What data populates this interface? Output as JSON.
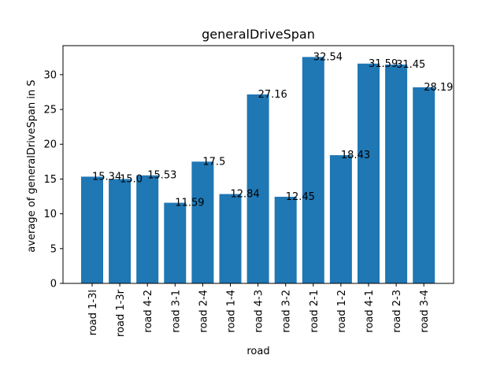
{
  "chart_data": {
    "type": "bar",
    "title": "generalDriveSpan",
    "xlabel": "road",
    "ylabel": "average of generalDriveSpan in S",
    "categories": [
      "road 1-3l",
      "road 1-3r",
      "road 4-2",
      "road 3-1",
      "road 2-4",
      "road 1-4",
      "road 4-3",
      "road 3-2",
      "road 2-1",
      "road 1-2",
      "road 4-1",
      "road 2-3",
      "road 3-4"
    ],
    "values": [
      15.34,
      15.0,
      15.53,
      11.59,
      17.5,
      12.84,
      27.16,
      12.45,
      32.54,
      18.43,
      31.59,
      31.45,
      28.19
    ],
    "value_labels": [
      "15.34",
      "15.0",
      "15.53",
      "11.59",
      "17.5",
      "12.84",
      "27.16",
      "12.45",
      "32.54",
      "18.43",
      "31.59",
      "31.45",
      "28.19"
    ],
    "yticks": [
      0,
      5,
      10,
      15,
      20,
      25,
      30
    ],
    "ylim": [
      0,
      34.17
    ],
    "grid": false,
    "bar_color": "#1f77b4"
  }
}
